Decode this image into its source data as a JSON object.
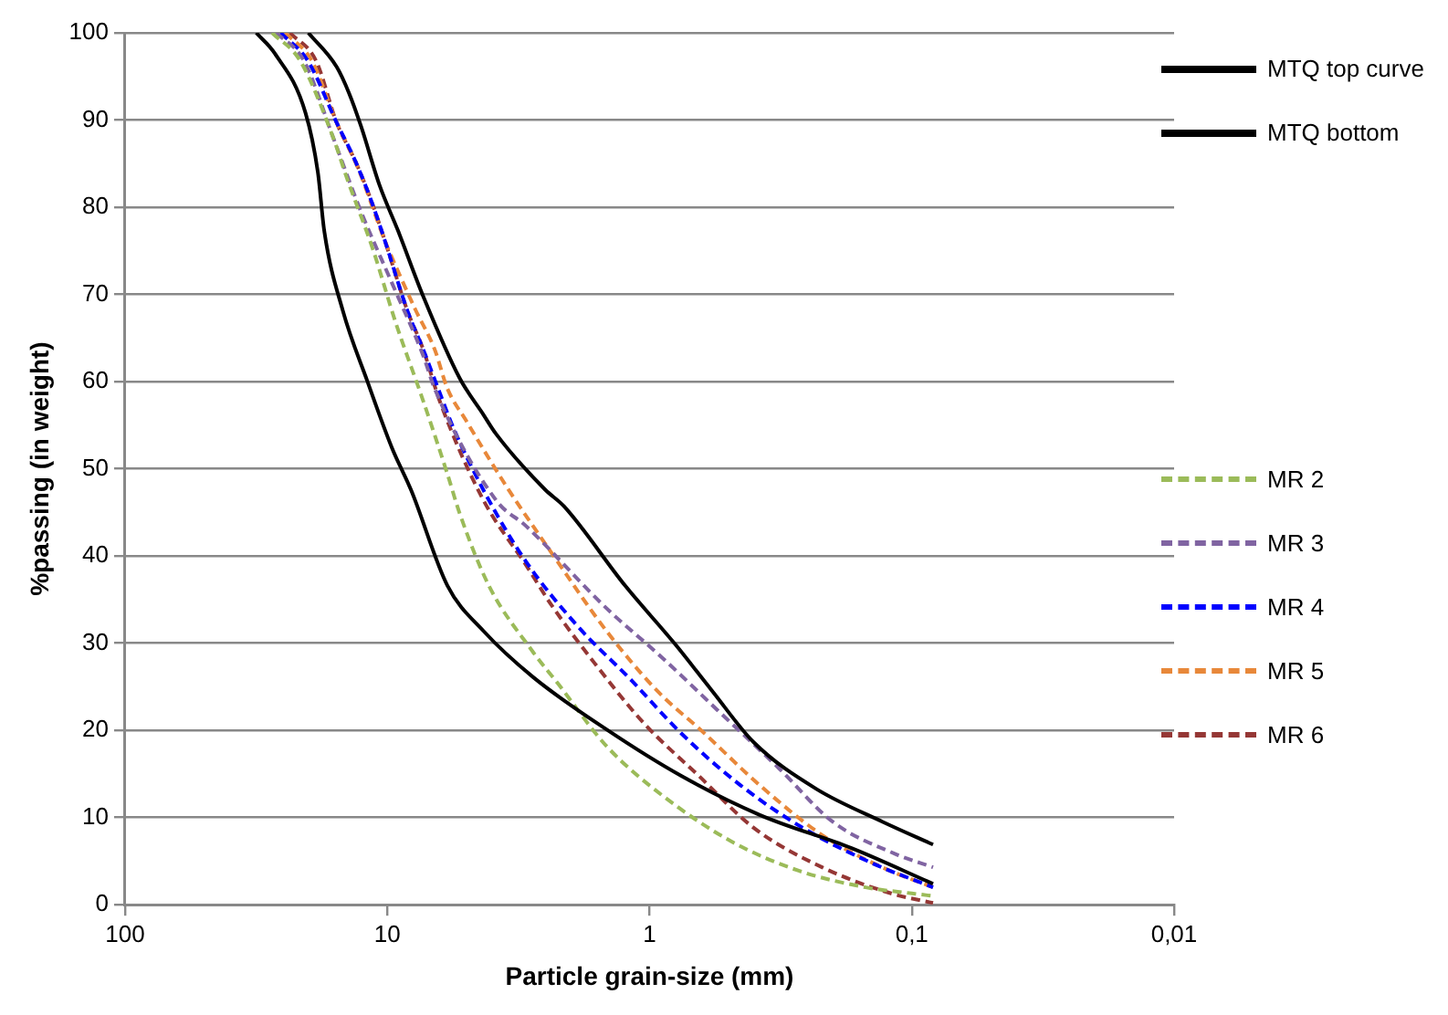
{
  "chart_data": {
    "type": "line",
    "xlabel": "Particle grain-size (mm)",
    "ylabel": "%passing (in weight)",
    "log": "x",
    "xlim": [
      100,
      0.01
    ],
    "xticks": [
      100,
      10,
      1,
      {
        "value": 0.1,
        "label": "0,1"
      },
      {
        "value": 0.01,
        "label": "0,01"
      }
    ],
    "ylim": [
      0,
      100
    ],
    "yticks": [
      0,
      10,
      20,
      30,
      40,
      50,
      60,
      70,
      80,
      90,
      100
    ],
    "grid": "y",
    "legend": "right",
    "marker": "none",
    "series": [
      {
        "name": "MTQ top curve",
        "color": "#000000",
        "line_style": "solid",
        "x": [
          20,
          15.6,
          14,
          12.6,
          10.7,
          9.1,
          7.3,
          5.3,
          4.3,
          3.85,
          2.5,
          2.12,
          1.24,
          0.8,
          0.58,
          0.4,
          0.232,
          0.129,
          0.083
        ],
        "values": [
          100,
          96.1,
          93.1,
          89.3,
          82.5,
          77.3,
          69.8,
          60.4,
          56.2,
          54,
          47.6,
          45.7,
          36.6,
          29.9,
          24.6,
          18.6,
          13.3,
          9.5,
          6.9
        ]
      },
      {
        "name": "MTQ bottom",
        "color": "#000000",
        "line_style": "solid",
        "x": [
          31.6,
          26.8,
          20.5,
          18.4,
          17.4,
          14.8,
          11.9,
          9.6,
          8.1,
          5.9,
          4.3,
          2.78,
          1.46,
          0.76,
          0.38,
          0.17,
          0.083
        ],
        "values": [
          100,
          97.6,
          90.8,
          84,
          77.3,
          68.2,
          60,
          52.4,
          47.5,
          36.6,
          31.4,
          26.1,
          20.1,
          14.8,
          10.3,
          6.5,
          2.4
        ]
      },
      {
        "name": "MR 2",
        "color": "#9bbb59",
        "line_style": "dashed",
        "x": [
          27.5,
          21.5,
          16,
          14.4,
          11.3,
          9.3,
          7.3,
          5.9,
          5.3,
          4.1,
          2.8,
          2.24,
          1.46,
          0.9,
          0.49,
          0.27,
          0.15,
          0.1,
          0.083
        ],
        "values": [
          100,
          96.8,
          87.8,
          83.7,
          75,
          66.8,
          57.8,
          49.4,
          44.9,
          36.6,
          29.1,
          25.4,
          18.2,
          12.6,
          7.3,
          3.9,
          2,
          1.3,
          1
        ]
      },
      {
        "name": "MR 3",
        "color": "#8064a2",
        "line_style": "dashed",
        "x": [
          26.5,
          20.8,
          16,
          12.6,
          9.6,
          7.3,
          6.6,
          3.85,
          2.95,
          1.46,
          0.9,
          0.55,
          0.32,
          0.2,
          0.115,
          0.083
        ],
        "values": [
          100,
          96.8,
          87.8,
          79.5,
          71.3,
          63,
          59.2,
          46.4,
          43.4,
          34,
          28.4,
          22.3,
          15.6,
          9.5,
          5.8,
          4.3
        ]
      },
      {
        "name": "MR 4",
        "color": "#0000ff",
        "line_style": "dashed",
        "x": [
          25.5,
          20.1,
          15.6,
          13.2,
          11.6,
          10.2,
          8.4,
          7.3,
          6.4,
          5.6,
          4.1,
          2.95,
          1.9,
          1.17,
          0.76,
          0.45,
          0.26,
          0.14,
          0.083
        ],
        "values": [
          100,
          96.8,
          89.7,
          85.2,
          81,
          76.1,
          68.2,
          63.7,
          59.2,
          54.7,
          46.4,
          39.3,
          32.1,
          25.7,
          19.7,
          13.7,
          8.8,
          4.7,
          2
        ]
      },
      {
        "name": "MR 5",
        "color": "#e8883a",
        "line_style": "dashed",
        "x": [
          24.5,
          19.4,
          15.6,
          12.9,
          10.2,
          8.9,
          7.8,
          6.6,
          5.9,
          5,
          3.5,
          2.37,
          1.46,
          0.94,
          0.62,
          0.38,
          0.22,
          0.13,
          0.083
        ],
        "values": [
          100,
          96.8,
          89.7,
          84.4,
          76.1,
          72,
          68.2,
          63.7,
          59.2,
          55.5,
          47.9,
          40.4,
          31.4,
          24.6,
          19.7,
          13.7,
          8,
          4.3,
          2
        ]
      },
      {
        "name": "MR 6",
        "color": "#953735",
        "line_style": "dashed",
        "x": [
          23.5,
          18.7,
          15.6,
          13.2,
          11.6,
          10.2,
          8.4,
          7.3,
          6.3,
          4.3,
          2.95,
          2.37,
          1.62,
          1.05,
          0.65,
          0.4,
          0.22,
          0.12,
          0.083
        ],
        "values": [
          100,
          96.8,
          89.7,
          85.2,
          81,
          76.1,
          68.2,
          63.7,
          57.7,
          46.4,
          38.9,
          34.4,
          27.7,
          20.8,
          14.8,
          8.8,
          4.3,
          1.3,
          0.2
        ]
      }
    ]
  }
}
